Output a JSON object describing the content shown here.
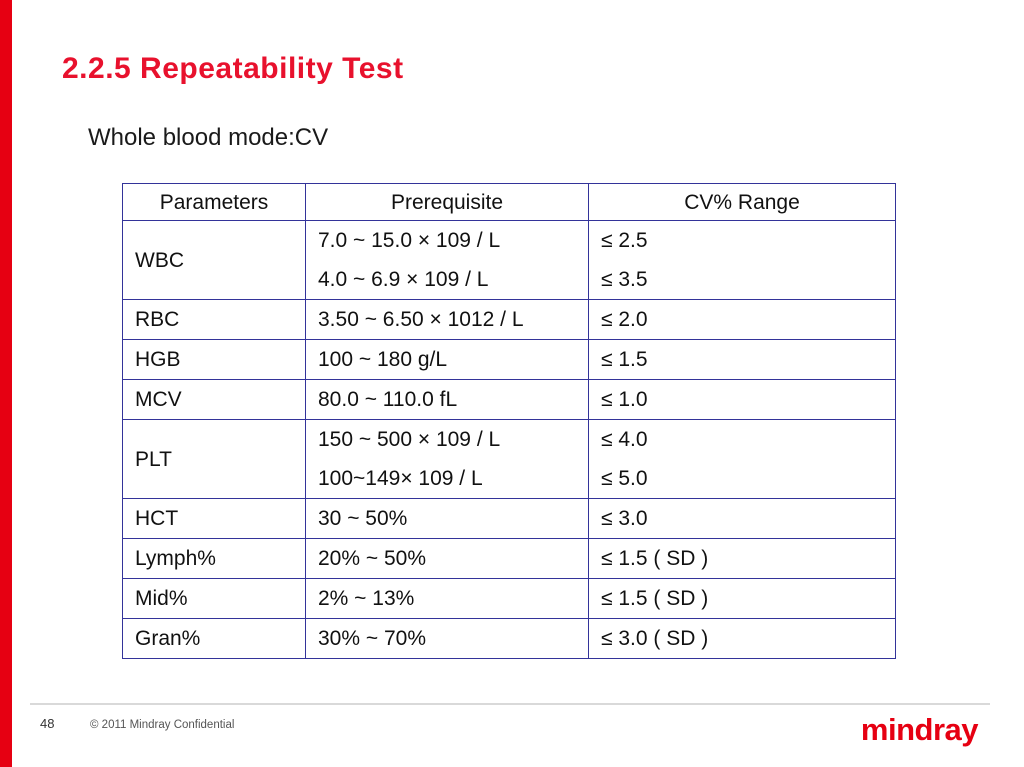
{
  "slide": {
    "title": "2.2.5 Repeatability Test",
    "subtitle": "Whole blood mode:CV"
  },
  "table": {
    "headers": [
      "Parameters",
      "Prerequisite",
      "CV% Range"
    ],
    "rows": [
      {
        "parameter": "WBC",
        "prerequisite": [
          "7.0 ~ 15.0 × 109 / L",
          "4.0 ~ 6.9 × 109 / L"
        ],
        "cv": [
          "≤ 2.5",
          "≤ 3.5"
        ]
      },
      {
        "parameter": "RBC",
        "prerequisite": [
          "3.50 ~ 6.50 × 1012 / L"
        ],
        "cv": [
          "≤ 2.0"
        ]
      },
      {
        "parameter": "HGB",
        "prerequisite": [
          "100 ~ 180 g/L"
        ],
        "cv": [
          "≤ 1.5"
        ]
      },
      {
        "parameter": "MCV",
        "prerequisite": [
          "80.0 ~ 110.0 fL"
        ],
        "cv": [
          "≤ 1.0"
        ]
      },
      {
        "parameter": "PLT",
        "prerequisite": [
          "150 ~ 500 × 109 / L",
          "100~149× 109 / L"
        ],
        "cv": [
          "≤ 4.0",
          "≤ 5.0"
        ]
      },
      {
        "parameter": "HCT",
        "prerequisite": [
          "30 ~ 50%"
        ],
        "cv": [
          "≤ 3.0"
        ]
      },
      {
        "parameter": "Lymph%",
        "prerequisite": [
          "20% ~ 50%"
        ],
        "cv": [
          "≤ 1.5 ( SD )"
        ]
      },
      {
        "parameter": "Mid%",
        "prerequisite": [
          "2% ~ 13%"
        ],
        "cv": [
          "≤ 1.5 ( SD )"
        ]
      },
      {
        "parameter": "Gran%",
        "prerequisite": [
          "30% ~ 70%"
        ],
        "cv": [
          "≤ 3.0 ( SD )"
        ]
      }
    ]
  },
  "footer": {
    "page_number": "48",
    "copyright": "© 2011 Mindray Confidential",
    "logo_text": "mindray"
  },
  "colors": {
    "accent_red": "#e60012",
    "title_red": "#e8112d",
    "table_border": "#333399"
  }
}
